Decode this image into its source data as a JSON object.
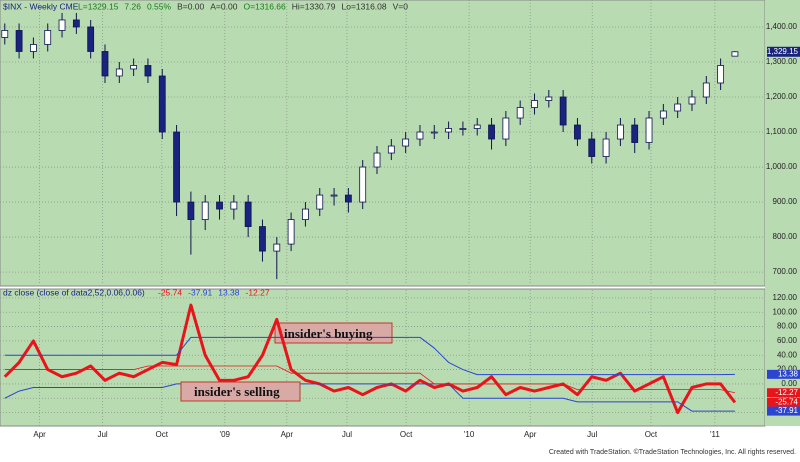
{
  "chart_data": [
    {
      "type": "candlestick",
      "title": "$INX - Weekly CME",
      "header": [
        "L=1329.15",
        "7.26",
        "0.55%",
        "B=0.00",
        "A=0.00",
        "O=1316.66",
        "Hi=1330.79",
        "Lo=1316.08",
        "V=0"
      ],
      "x": [
        0,
        3,
        6,
        9,
        12,
        15,
        18,
        21,
        24,
        27,
        30,
        33,
        36,
        39,
        42,
        45,
        48,
        51,
        54,
        57,
        60,
        63,
        66,
        69,
        72,
        75,
        78,
        81,
        84,
        87,
        90,
        93,
        96,
        99,
        102,
        105,
        108,
        111,
        114,
        117,
        120,
        123,
        126,
        129,
        132,
        135,
        138,
        141,
        144,
        147,
        150,
        153
      ],
      "open": [
        1370,
        1390,
        1330,
        1350,
        1390,
        1420,
        1400,
        1330,
        1260,
        1280,
        1290,
        1260,
        1100,
        900,
        850,
        900,
        880,
        900,
        830,
        760,
        780,
        850,
        880,
        920,
        920,
        900,
        1000,
        1040,
        1060,
        1080,
        1100,
        1100,
        1110,
        1110,
        1120,
        1080,
        1140,
        1170,
        1190,
        1200,
        1120,
        1080,
        1030,
        1080,
        1120,
        1070,
        1140,
        1160,
        1180,
        1200,
        1240,
        1316.66
      ],
      "high": [
        1410,
        1410,
        1370,
        1410,
        1440,
        1440,
        1420,
        1350,
        1300,
        1310,
        1310,
        1280,
        1120,
        930,
        920,
        920,
        920,
        920,
        850,
        800,
        870,
        900,
        940,
        940,
        940,
        1020,
        1060,
        1080,
        1100,
        1120,
        1120,
        1130,
        1130,
        1140,
        1140,
        1160,
        1190,
        1210,
        1220,
        1220,
        1140,
        1100,
        1100,
        1140,
        1140,
        1160,
        1180,
        1200,
        1220,
        1260,
        1310,
        1330.79
      ],
      "low": [
        1350,
        1310,
        1310,
        1330,
        1370,
        1380,
        1310,
        1240,
        1240,
        1260,
        1240,
        1080,
        860,
        750,
        820,
        850,
        850,
        800,
        730,
        680,
        760,
        830,
        860,
        890,
        870,
        880,
        980,
        1020,
        1040,
        1060,
        1080,
        1080,
        1090,
        1090,
        1050,
        1060,
        1120,
        1150,
        1170,
        1100,
        1060,
        1010,
        1010,
        1060,
        1040,
        1050,
        1120,
        1140,
        1160,
        1180,
        1220,
        1316.08
      ],
      "close": [
        1390,
        1330,
        1350,
        1390,
        1420,
        1400,
        1330,
        1260,
        1280,
        1290,
        1260,
        1100,
        900,
        850,
        900,
        880,
        900,
        830,
        760,
        780,
        850,
        880,
        920,
        920,
        900,
        1000,
        1040,
        1060,
        1080,
        1100,
        1100,
        1110,
        1110,
        1120,
        1080,
        1140,
        1170,
        1190,
        1200,
        1120,
        1080,
        1030,
        1080,
        1120,
        1070,
        1140,
        1160,
        1180,
        1200,
        1240,
        1290,
        1329.15
      ],
      "last_label": "1,329.15",
      "up_color": "#ffffff",
      "down_color": "#1a237e",
      "xlim": [
        -1,
        159.3
      ],
      "ylim": [
        666,
        1477
      ],
      "yticks": [
        {
          "value": 700,
          "label": "700.00"
        },
        {
          "value": 800,
          "label": "800.00"
        },
        {
          "value": 900,
          "label": "900.00"
        },
        {
          "value": 1000,
          "label": "1,000.00"
        },
        {
          "value": 1100,
          "label": "1,100.00"
        },
        {
          "value": 1200,
          "label": "1,200.00"
        },
        {
          "value": 1300,
          "label": "1,300.00"
        },
        {
          "value": 1400,
          "label": "1,400.00"
        }
      ],
      "grid": true
    },
    {
      "type": "line",
      "title": "dz close (close of data2,52,0.06,0.06)",
      "x": [
        0,
        3,
        6,
        9,
        12,
        15,
        18,
        21,
        24,
        27,
        30,
        33,
        36,
        39,
        42,
        45,
        48,
        51,
        54,
        57,
        60,
        63,
        66,
        69,
        72,
        75,
        78,
        81,
        84,
        87,
        90,
        93,
        96,
        99,
        102,
        105,
        108,
        111,
        114,
        117,
        120,
        123,
        126,
        129,
        132,
        135,
        138,
        141,
        144,
        147,
        150,
        153
      ],
      "series": [
        {
          "name": "-25.74",
          "color": "#e8141a",
          "width": 3,
          "values": [
            10,
            30,
            60,
            20,
            10,
            15,
            25,
            5,
            15,
            10,
            20,
            30,
            27,
            110,
            40,
            5,
            5,
            10,
            40,
            90,
            20,
            5,
            0,
            -10,
            -5,
            -15,
            -5,
            0,
            -10,
            5,
            -5,
            0,
            -10,
            -5,
            10,
            -15,
            -5,
            -10,
            -5,
            0,
            -15,
            10,
            5,
            15,
            -10,
            0,
            10,
            -40,
            -5,
            0,
            0,
            -25.74
          ]
        },
        {
          "name": "-37.91",
          "color": "#2b45d0",
          "width": 1,
          "values": [
            -20,
            -10,
            -5,
            -5,
            -5,
            -5,
            -5,
            -5,
            -5,
            -5,
            -5,
            -5,
            0,
            0,
            0,
            0,
            0,
            0,
            0,
            0,
            0,
            0,
            0,
            0,
            0,
            0,
            0,
            0,
            0,
            0,
            0,
            0,
            -20,
            -20,
            -20,
            -20,
            -20,
            -20,
            -20,
            -20,
            -25,
            -25,
            -25,
            -25,
            -25,
            -25,
            -25,
            -25,
            -38,
            -38,
            -38,
            -37.91
          ]
        },
        {
          "name": "13.38",
          "color": "#2b45d0",
          "width": 1,
          "values": [
            40,
            40,
            40,
            40,
            40,
            40,
            40,
            40,
            40,
            40,
            40,
            40,
            40,
            65,
            65,
            65,
            65,
            65,
            65,
            65,
            65,
            65,
            65,
            65,
            65,
            65,
            65,
            65,
            65,
            65,
            50,
            30,
            20,
            13,
            13,
            13,
            13,
            13,
            13,
            13,
            13,
            13,
            13,
            13,
            13,
            13,
            13,
            13,
            13,
            13,
            13,
            13.38
          ]
        },
        {
          "name": "-12.27",
          "color": "#e8141a",
          "width": 0.8,
          "values": [
            20,
            20,
            20,
            20,
            20,
            20,
            20,
            20,
            20,
            20,
            25,
            25,
            25,
            25,
            25,
            25,
            25,
            25,
            25,
            25,
            15,
            15,
            15,
            15,
            15,
            15,
            15,
            15,
            15,
            15,
            0,
            0,
            0,
            0,
            0,
            0,
            0,
            0,
            0,
            0,
            -8,
            -8,
            -8,
            -8,
            -8,
            -8,
            -8,
            -8,
            -8,
            -8,
            -8,
            -12.27
          ]
        }
      ],
      "annotations": [
        "insider's buying",
        "insider's selling"
      ],
      "xlim": [
        -1,
        159.3
      ],
      "xticks": [
        {
          "value": 7.3,
          "label": "Apr"
        },
        {
          "value": 20.5,
          "label": "Jul"
        },
        {
          "value": 32.9,
          "label": "Oct"
        },
        {
          "value": 46.1,
          "label": "'09"
        },
        {
          "value": 59.1,
          "label": "Apr"
        },
        {
          "value": 71.7,
          "label": "Jul"
        },
        {
          "value": 84.1,
          "label": "Oct"
        },
        {
          "value": 97.3,
          "label": "'10"
        },
        {
          "value": 110.1,
          "label": "Apr"
        },
        {
          "value": 123.1,
          "label": "Jul"
        },
        {
          "value": 135.4,
          "label": "Oct"
        },
        {
          "value": 148.8,
          "label": "'11"
        }
      ],
      "ylim": [
        -58,
        131
      ],
      "yticks": [
        {
          "value": -40,
          "label": "-40.00"
        },
        {
          "value": -20,
          "label": "-20.00"
        },
        {
          "value": 0,
          "label": "0.00"
        },
        {
          "value": 20,
          "label": "20.00"
        },
        {
          "value": 40,
          "label": "40.00"
        },
        {
          "value": 60,
          "label": "60.00"
        },
        {
          "value": 80,
          "label": "80.00"
        },
        {
          "value": 100,
          "label": "100.00"
        },
        {
          "value": 120,
          "label": "120.00"
        }
      ],
      "grid": true,
      "footer": "Created with TradeStation. ©TradeStation Technologies, Inc. All rights reserved."
    }
  ]
}
